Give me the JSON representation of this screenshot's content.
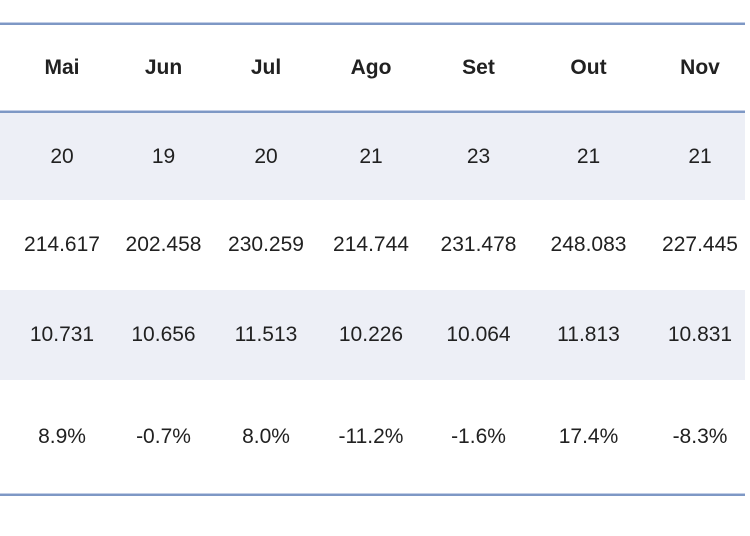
{
  "table": {
    "columns": [
      "Mai",
      "Jun",
      "Jul",
      "Ago",
      "Set",
      "Out",
      "Nov"
    ],
    "rows": [
      [
        "20",
        "19",
        "20",
        "21",
        "23",
        "21",
        "21"
      ],
      [
        "214.617",
        "202.458",
        "230.259",
        "214.744",
        "231.478",
        "248.083",
        "227.445"
      ],
      [
        "10.731",
        "10.656",
        "11.513",
        "10.226",
        "10.064",
        "11.813",
        "10.831"
      ],
      [
        "8.9%",
        "-0.7%",
        "8.0%",
        "-11.2%",
        "-1.6%",
        "17.4%",
        "-8.3%"
      ]
    ]
  },
  "colors": {
    "border_blue": "#7e98c5",
    "border_blue_light": "#c2cee6",
    "banded_row_fill": "#edeff6",
    "text": "#212121",
    "background": "#ffffff"
  }
}
